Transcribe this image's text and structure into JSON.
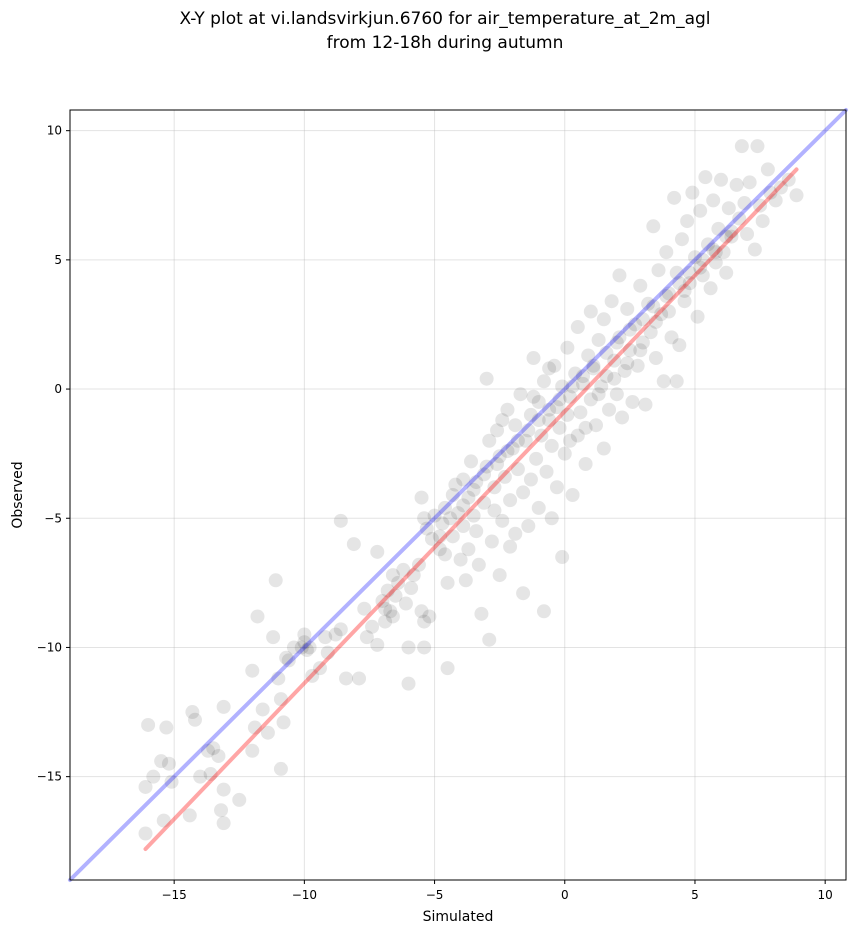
{
  "chart_data": {
    "type": "scatter",
    "title_line1": "X-Y plot at vi.landsvirkjun.6760 for air_temperature_at_2m_agl",
    "title_line2": "from 12-18h during autumn",
    "xlabel": "Simulated",
    "ylabel": "Observed",
    "xlim": [
      -19.0,
      10.8
    ],
    "ylim": [
      -19.0,
      10.8
    ],
    "xticks": [
      -15,
      -10,
      -5,
      0,
      5,
      10
    ],
    "yticks": [
      -15,
      -10,
      -5,
      0,
      5,
      10
    ],
    "xtick_labels": [
      "−15",
      "−10",
      "−5",
      "0",
      "5",
      "10"
    ],
    "ytick_labels": [
      "−15",
      "−10",
      "−5",
      "0",
      "5",
      "10"
    ],
    "grid": true,
    "point_color": "#000000",
    "point_alpha": 0.1,
    "lines": [
      {
        "kind": "identity",
        "color": "#0000ff",
        "alpha": 0.3,
        "x": [
          -19.0,
          10.8
        ],
        "y": [
          -19.0,
          10.8
        ]
      },
      {
        "kind": "fit",
        "color": "#ff0000",
        "alpha": 0.35,
        "x": [
          -16.1,
          8.9
        ],
        "y": [
          -17.8,
          8.5
        ]
      }
    ],
    "series": [
      {
        "values": [
          [
            -16,
            -13
          ],
          [
            -15.3,
            -13.1
          ],
          [
            -16.1,
            -15.4
          ],
          [
            -15.8,
            -15
          ],
          [
            -15.5,
            -14.4
          ],
          [
            -15.2,
            -14.5
          ],
          [
            -15.1,
            -15.2
          ],
          [
            -15.4,
            -16.7
          ],
          [
            -16.1,
            -17.2
          ],
          [
            -14.3,
            -12.5
          ],
          [
            -14.2,
            -12.8
          ],
          [
            -14,
            -15
          ],
          [
            -14.4,
            -16.5
          ],
          [
            -13.5,
            -13.9
          ],
          [
            -13.6,
            -14.9
          ],
          [
            -13.7,
            -14
          ],
          [
            -13.3,
            -14.2
          ],
          [
            -13.1,
            -12.3
          ],
          [
            -13.1,
            -15.5
          ],
          [
            -13.2,
            -16.3
          ],
          [
            -13.1,
            -16.8
          ],
          [
            -12.5,
            -15.9
          ],
          [
            -12,
            -14
          ],
          [
            -11.9,
            -13.1
          ],
          [
            -11.4,
            -13.3
          ],
          [
            -11.6,
            -12.4
          ],
          [
            -12,
            -10.9
          ],
          [
            -11.8,
            -8.8
          ],
          [
            -11.1,
            -7.4
          ],
          [
            -11.2,
            -9.6
          ],
          [
            -10.9,
            -12
          ],
          [
            -10.9,
            -14.7
          ],
          [
            -10.8,
            -12.9
          ],
          [
            -11,
            -11.2
          ],
          [
            -10.7,
            -10.4
          ],
          [
            -10.4,
            -10
          ],
          [
            -10.6,
            -10.5
          ],
          [
            -10.1,
            -10
          ],
          [
            -10,
            -9.8
          ],
          [
            -9.8,
            -10
          ],
          [
            -10,
            -9.5
          ],
          [
            -9.9,
            -10.1
          ],
          [
            -9.7,
            -11.1
          ],
          [
            -9.4,
            -10.8
          ],
          [
            -9.1,
            -10.2
          ],
          [
            -9.2,
            -9.6
          ],
          [
            -8.8,
            -9.5
          ],
          [
            -8.6,
            -9.3
          ],
          [
            -8.6,
            -5.1
          ],
          [
            -8.4,
            -11.2
          ],
          [
            -7.9,
            -11.2
          ],
          [
            -8.1,
            -6
          ],
          [
            -7.7,
            -8.5
          ],
          [
            -7.6,
            -9.6
          ],
          [
            -7.4,
            -9.2
          ],
          [
            -7.2,
            -6.3
          ],
          [
            -7.2,
            -9.9
          ],
          [
            -7,
            -8.2
          ],
          [
            -6.9,
            -8.5
          ],
          [
            -6.8,
            -7.8
          ],
          [
            -6.9,
            -9
          ],
          [
            -6.6,
            -8.8
          ],
          [
            -6.7,
            -8.6
          ],
          [
            -6.5,
            -8
          ],
          [
            -6.6,
            -7.2
          ],
          [
            -6.4,
            -7.5
          ],
          [
            -6.2,
            -7
          ],
          [
            -6.1,
            -8.3
          ],
          [
            -6,
            -11.4
          ],
          [
            -6,
            -10
          ],
          [
            -5.9,
            -7.7
          ],
          [
            -5.8,
            -7.2
          ],
          [
            -5.6,
            -6.8
          ],
          [
            -5.5,
            -8.6
          ],
          [
            -5.4,
            -9
          ],
          [
            -5.4,
            -10
          ],
          [
            -5.2,
            -8.8
          ],
          [
            -4.5,
            -10.8
          ],
          [
            -5.5,
            -4.2
          ],
          [
            -5.3,
            -5.4
          ],
          [
            -5.4,
            -5.0
          ],
          [
            -5.1,
            -5.8
          ],
          [
            -5.0,
            -4.9
          ],
          [
            -4.8,
            -6.2
          ],
          [
            -4.7,
            -5.2
          ],
          [
            -4.6,
            -4.6
          ],
          [
            -4.6,
            -6.4
          ],
          [
            -4.5,
            -7.5
          ],
          [
            -4.3,
            -5.7
          ],
          [
            -4.3,
            -4.1
          ],
          [
            -4.2,
            -3.7
          ],
          [
            -4.1,
            -4.8
          ],
          [
            -4.0,
            -6.6
          ],
          [
            -3.9,
            -3.5
          ],
          [
            -3.9,
            -5.3
          ],
          [
            -3.8,
            -7.4
          ],
          [
            -3.7,
            -4.2
          ],
          [
            -3.7,
            -6.2
          ],
          [
            -3.6,
            -2.8
          ],
          [
            -3.5,
            -4.9
          ],
          [
            -3.4,
            -3.6
          ],
          [
            -3.4,
            -5.5
          ],
          [
            -3.3,
            -6.8
          ],
          [
            -3.2,
            -8.7
          ],
          [
            -3.1,
            -4.4
          ],
          [
            -3.0,
            -3.0
          ],
          [
            -2.9,
            -2.0
          ],
          [
            -2.9,
            -9.7
          ],
          [
            -2.8,
            -5.9
          ],
          [
            -2.7,
            -3.8
          ],
          [
            -2.7,
            -4.7
          ],
          [
            -2.6,
            -1.6
          ],
          [
            -2.5,
            -7.2
          ],
          [
            -2.5,
            -2.6
          ],
          [
            -2.4,
            -5.1
          ],
          [
            -2.3,
            -3.4
          ],
          [
            -2.2,
            -0.8
          ],
          [
            -2.1,
            -6.1
          ],
          [
            -2.1,
            -4.3
          ],
          [
            -2.0,
            -2.3
          ],
          [
            -1.9,
            -1.4
          ],
          [
            -1.9,
            -5.6
          ],
          [
            -1.8,
            -3.1
          ],
          [
            -1.7,
            -0.2
          ],
          [
            -1.6,
            -4.0
          ],
          [
            -1.6,
            -7.9
          ],
          [
            -1.5,
            -2.0
          ],
          [
            -1.4,
            -5.3
          ],
          [
            -1.3,
            -1.0
          ],
          [
            -1.3,
            -3.5
          ],
          [
            -1.2,
            1.2
          ],
          [
            -1.1,
            -2.7
          ],
          [
            -1.0,
            -0.5
          ],
          [
            -1.0,
            -4.6
          ],
          [
            -0.9,
            -1.8
          ],
          [
            -0.8,
            -8.6
          ],
          [
            -0.8,
            0.3
          ],
          [
            -0.7,
            -3.2
          ],
          [
            -0.6,
            -1.2
          ],
          [
            -0.5,
            -5.0
          ],
          [
            -0.5,
            -2.2
          ],
          [
            -0.4,
            0.9
          ],
          [
            -0.3,
            -0.7
          ],
          [
            -0.3,
            -3.8
          ],
          [
            -0.2,
            -1.5
          ],
          [
            -0.1,
            -6.5
          ],
          [
            -0.1,
            0.1
          ],
          [
            0.0,
            -2.5
          ],
          [
            0.1,
            -1.0
          ],
          [
            0.1,
            1.6
          ],
          [
            0.2,
            -0.3
          ],
          [
            0.3,
            -4.1
          ],
          [
            0.4,
            0.6
          ],
          [
            0.5,
            -1.8
          ],
          [
            0.5,
            2.4
          ],
          [
            0.6,
            -0.9
          ],
          [
            0.7,
            0.2
          ],
          [
            0.8,
            -2.9
          ],
          [
            0.9,
            1.3
          ],
          [
            1.0,
            -0.4
          ],
          [
            1.0,
            3.0
          ],
          [
            1.1,
            0.8
          ],
          [
            1.2,
            -1.4
          ],
          [
            1.3,
            1.9
          ],
          [
            1.4,
            0.1
          ],
          [
            1.5,
            -2.3
          ],
          [
            1.5,
            2.7
          ],
          [
            1.6,
            0.5
          ],
          [
            1.7,
            -0.8
          ],
          [
            1.8,
            3.4
          ],
          [
            1.9,
            1.1
          ],
          [
            2.0,
            -0.2
          ],
          [
            2.1,
            4.4
          ],
          [
            2.1,
            2.0
          ],
          [
            2.2,
            -1.1
          ],
          [
            2.3,
            0.7
          ],
          [
            2.4,
            3.1
          ],
          [
            2.5,
            1.5
          ],
          [
            2.6,
            -0.5
          ],
          [
            2.7,
            2.5
          ],
          [
            2.8,
            0.9
          ],
          [
            2.9,
            4.0
          ],
          [
            3.0,
            1.8
          ],
          [
            3.1,
            -0.6
          ],
          [
            3.2,
            3.3
          ],
          [
            3.3,
            2.2
          ],
          [
            3.4,
            6.3
          ],
          [
            3.5,
            1.2
          ],
          [
            3.6,
            4.6
          ],
          [
            3.7,
            2.9
          ],
          [
            3.8,
            0.3
          ],
          [
            3.9,
            5.3
          ],
          [
            4.0,
            3.7
          ],
          [
            4.1,
            2.0
          ],
          [
            4.2,
            7.4
          ],
          [
            4.3,
            4.5
          ],
          [
            4.4,
            1.7
          ],
          [
            4.5,
            5.8
          ],
          [
            4.6,
            3.4
          ],
          [
            4.7,
            6.5
          ],
          [
            4.8,
            4.1
          ],
          [
            4.9,
            7.6
          ],
          [
            5.0,
            5.1
          ],
          [
            5.1,
            2.8
          ],
          [
            5.2,
            6.9
          ],
          [
            5.3,
            4.4
          ],
          [
            5.4,
            8.2
          ],
          [
            5.5,
            5.6
          ],
          [
            5.6,
            3.9
          ],
          [
            5.7,
            7.3
          ],
          [
            5.8,
            4.9
          ],
          [
            5.9,
            6.2
          ],
          [
            6.0,
            8.1
          ],
          [
            6.1,
            5.3
          ],
          [
            6.2,
            4.5
          ],
          [
            6.3,
            7.0
          ],
          [
            6.4,
            5.9
          ],
          [
            6.6,
            7.9
          ],
          [
            6.7,
            6.6
          ],
          [
            6.8,
            9.4
          ],
          [
            6.9,
            7.2
          ],
          [
            7.0,
            6.0
          ],
          [
            7.1,
            8.0
          ],
          [
            7.3,
            5.4
          ],
          [
            7.4,
            9.4
          ],
          [
            7.5,
            7.1
          ],
          [
            7.6,
            6.5
          ],
          [
            7.8,
            8.5
          ],
          [
            7.9,
            7.6
          ],
          [
            8.1,
            7.3
          ],
          [
            8.3,
            7.8
          ],
          [
            8.6,
            8.1
          ],
          [
            8.9,
            7.5
          ],
          [
            4.3,
            0.3
          ],
          [
            -3.0,
            0.4
          ],
          [
            -2.4,
            -1.2
          ],
          [
            -1.2,
            -0.3
          ],
          [
            -0.6,
            0.8
          ],
          [
            0.2,
            -2.0
          ],
          [
            0.8,
            -1.5
          ],
          [
            1.3,
            -0.2
          ],
          [
            1.9,
            0.4
          ],
          [
            2.4,
            1.0
          ],
          [
            2.9,
            1.5
          ],
          [
            3.5,
            2.6
          ],
          [
            4.0,
            3.0
          ],
          [
            4.6,
            3.8
          ],
          [
            5.2,
            4.7
          ],
          [
            5.8,
            5.3
          ],
          [
            6.4,
            6.1
          ],
          [
            -4.8,
            -5.7
          ],
          [
            -4.4,
            -5.0
          ],
          [
            -3.9,
            -4.5
          ],
          [
            -3.5,
            -3.9
          ],
          [
            -3.1,
            -3.3
          ],
          [
            -2.6,
            -2.9
          ],
          [
            -2.2,
            -2.4
          ],
          [
            -1.8,
            -2.0
          ],
          [
            -1.4,
            -1.6
          ],
          [
            -1.0,
            -1.2
          ],
          [
            -0.6,
            -0.8
          ],
          [
            -0.2,
            -0.4
          ],
          [
            0.3,
            0.1
          ],
          [
            0.7,
            0.5
          ],
          [
            1.1,
            0.9
          ],
          [
            1.6,
            1.4
          ],
          [
            2.0,
            1.8
          ],
          [
            2.5,
            2.3
          ],
          [
            3.0,
            2.7
          ],
          [
            3.4,
            3.2
          ],
          [
            3.9,
            3.6
          ],
          [
            4.4,
            4.1
          ],
          [
            4.8,
            4.5
          ],
          [
            5.3,
            5.0
          ],
          [
            5.7,
            5.4
          ],
          [
            6.2,
            5.9
          ]
        ]
      }
    ]
  }
}
